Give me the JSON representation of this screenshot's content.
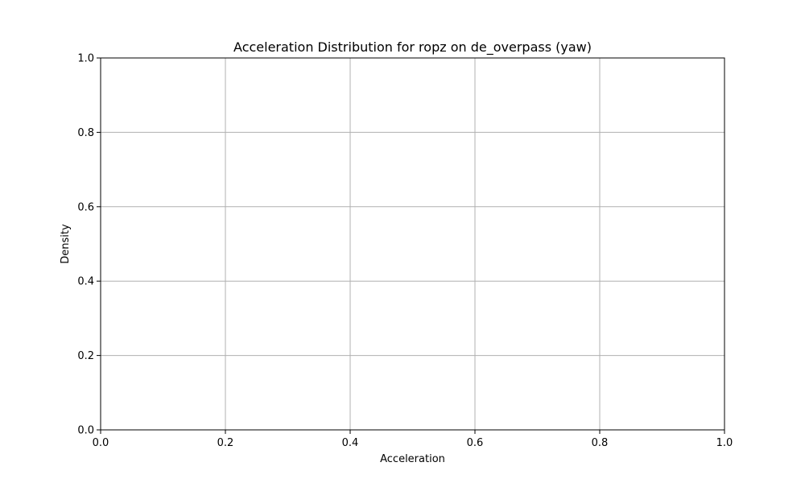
{
  "chart_data": {
    "type": "line",
    "title": "Acceleration Distribution for ropz on de_overpass (yaw)",
    "xlabel": "Acceleration",
    "ylabel": "Density",
    "xlim": [
      0.0,
      1.0
    ],
    "ylim": [
      0.0,
      1.0
    ],
    "xticks": [
      0.0,
      0.2,
      0.4,
      0.6,
      0.8,
      1.0
    ],
    "yticks": [
      0.0,
      0.2,
      0.4,
      0.6,
      0.8,
      1.0
    ],
    "xtick_labels": [
      "0.0",
      "0.2",
      "0.4",
      "0.6",
      "0.8",
      "1.0"
    ],
    "ytick_labels": [
      "0.0",
      "0.2",
      "0.4",
      "0.6",
      "0.8",
      "1.0"
    ],
    "grid": true,
    "series": [],
    "colors": {
      "grid": "#b0b0b0",
      "axes": "#000000",
      "background": "#ffffff"
    }
  }
}
